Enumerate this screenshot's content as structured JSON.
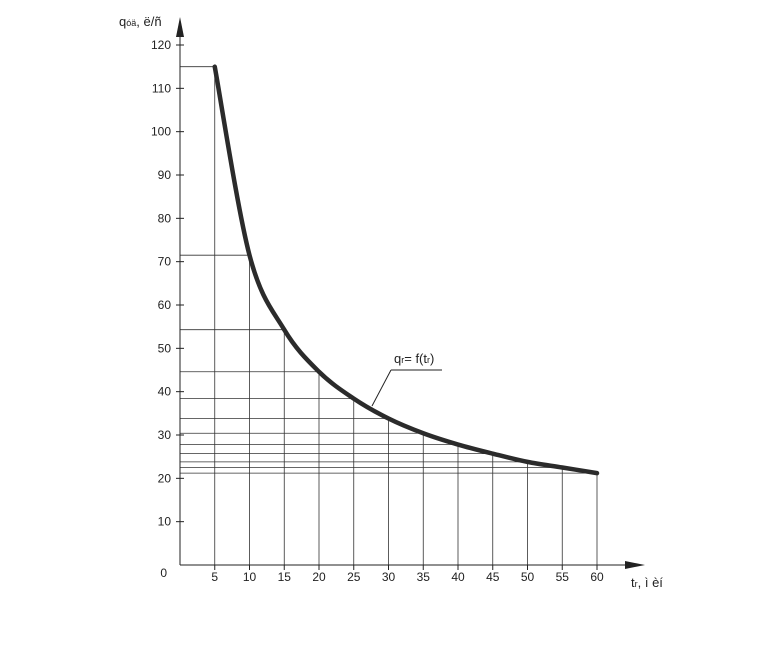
{
  "chart_data": {
    "type": "line",
    "title": "",
    "ylabel": {
      "main": "q",
      "sub": "óä",
      "rest": ", ë/ñ"
    },
    "xlabel": {
      "main": "t",
      "sub": "r",
      "rest": ", ì  èí"
    },
    "curve_label": {
      "q": "q",
      "q_sub": "r",
      "mid": "= f(t",
      "t_sub": "r",
      "end": ")"
    },
    "origin_label": "0",
    "xlim": [
      0,
      60
    ],
    "ylim": [
      0,
      120
    ],
    "x_ticks": [
      "5",
      "10",
      "15",
      "20",
      "25",
      "30",
      "35",
      "40",
      "45",
      "50",
      "55",
      "60"
    ],
    "y_ticks": [
      "10",
      "20",
      "30",
      "40",
      "50",
      "60",
      "70",
      "80",
      "90",
      "100",
      "110",
      "120"
    ],
    "grid": "drop lines from each x point to the curve and across to the y-axis",
    "series": [
      {
        "x": [
          5,
          10,
          15,
          20,
          25,
          30,
          35,
          40,
          45,
          50,
          55,
          60
        ],
        "values": [
          115,
          71.5,
          54.3,
          44.6,
          38.4,
          33.8,
          30.4,
          27.8,
          25.7,
          23.8,
          22.5,
          21.2
        ]
      }
    ],
    "colors": {
      "curve": "#2b2b2b",
      "axes": "#222222",
      "grid": "#333333"
    }
  }
}
